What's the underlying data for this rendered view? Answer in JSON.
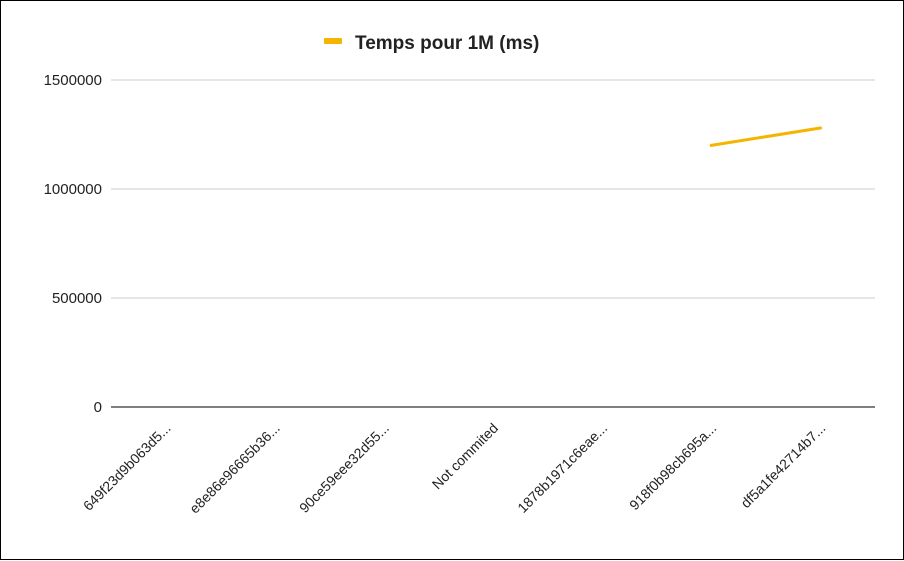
{
  "chart_data": {
    "type": "line",
    "legend": "Temps pour 1M (ms)",
    "legend_position": "top",
    "categories": [
      "649f23d9b063d5...",
      "e8e86e96665b36...",
      "90ce59eee32d55...",
      "Not commited",
      "1878b1971c6eae...",
      "918f0b98cb695a...",
      "df5a1fe42714b7..."
    ],
    "series": [
      {
        "name": "Temps pour 1M (ms)",
        "color": "#F4B400",
        "values": [
          null,
          null,
          null,
          null,
          null,
          1200000,
          1280000
        ]
      }
    ],
    "y_ticks": [
      "0",
      "500000",
      "1000000",
      "1500000"
    ],
    "ylim": [
      0,
      1500000
    ],
    "grid": true
  }
}
